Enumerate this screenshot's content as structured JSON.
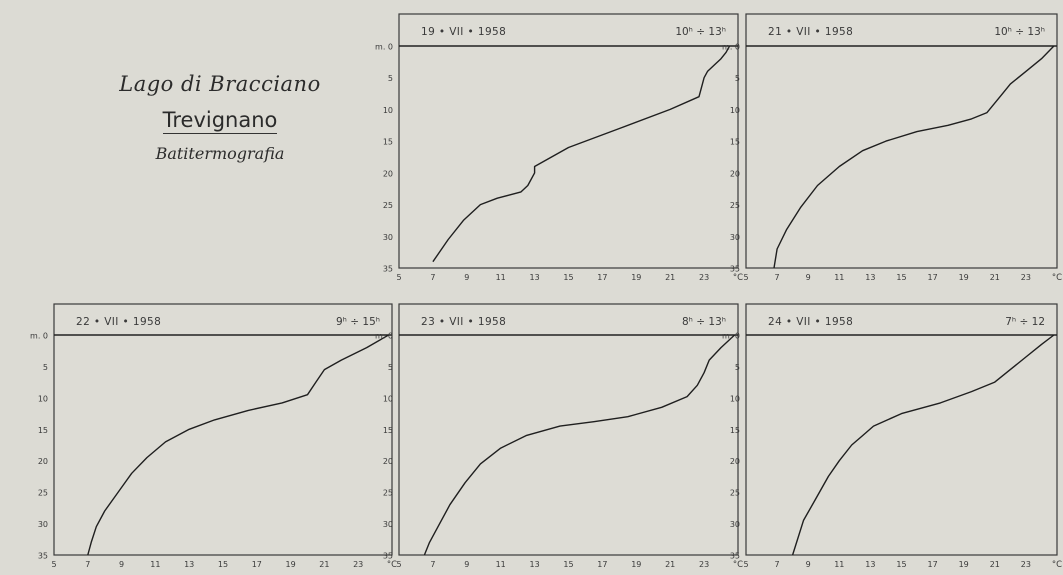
{
  "header": {
    "lake": "Lago di Bracciano",
    "place": "Trevignano",
    "subtitle": "Batitermografia"
  },
  "axes": {
    "depth_prefix": "m.",
    "depth_ticks": [
      0,
      5,
      10,
      15,
      20,
      25,
      30,
      35
    ],
    "temp_ticks": [
      5,
      7,
      9,
      11,
      13,
      15,
      17,
      19,
      21,
      23
    ],
    "temp_unit": "°C",
    "xlim": [
      5,
      25
    ],
    "ylim": [
      0,
      35
    ]
  },
  "chart_data": [
    {
      "type": "line",
      "date": "19 • VII • 1958",
      "time": "10ʰ ÷ 13ʰ",
      "xlabel": "°C",
      "ylabel": "m.",
      "x": [
        24.5,
        24.3,
        24.0,
        23.6,
        23.2,
        23.0,
        22.9,
        22.7,
        21.0,
        18.0,
        15.0,
        13.0,
        13.0,
        12.6,
        12.2,
        11.5,
        10.8,
        9.8,
        8.8,
        7.9,
        7.0
      ],
      "y": [
        0,
        1,
        2,
        3,
        4,
        5,
        6,
        8,
        10,
        13,
        16,
        19,
        20,
        22,
        23,
        23.5,
        24,
        25,
        27.5,
        30.5,
        34
      ]
    },
    {
      "type": "line",
      "date": "21 • VII • 1958",
      "time": "10ʰ ÷ 13ʰ",
      "xlabel": "°C",
      "ylabel": "m.",
      "x": [
        24.8,
        24.0,
        23.0,
        22.0,
        21.5,
        21.0,
        20.5,
        19.5,
        18.0,
        16.0,
        14.0,
        12.5,
        11.0,
        9.6,
        8.5,
        7.6,
        7.0,
        6.8
      ],
      "y": [
        0,
        2,
        4,
        6,
        7.5,
        9,
        10.5,
        11.5,
        12.5,
        13.5,
        15,
        16.5,
        19,
        22,
        25.5,
        29,
        32,
        35
      ]
    },
    {
      "type": "line",
      "date": "22 • VII • 1958",
      "time": "9ʰ ÷ 15ʰ",
      "xlabel": "°C",
      "ylabel": "m.",
      "x": [
        24.8,
        23.5,
        22.0,
        21.0,
        20.5,
        20.0,
        18.5,
        16.5,
        14.5,
        13.0,
        11.6,
        10.5,
        9.6,
        8.8,
        8.0,
        7.5,
        7.2,
        7.0
      ],
      "y": [
        0,
        2,
        4,
        5.5,
        7.5,
        9.5,
        10.8,
        12,
        13.5,
        15,
        17,
        19.5,
        22,
        25,
        28,
        30.5,
        33,
        35
      ]
    },
    {
      "type": "line",
      "date": "23 • VII • 1958",
      "time": "8ʰ ÷ 13ʰ",
      "xlabel": "°C",
      "ylabel": "m.",
      "x": [
        24.8,
        24.0,
        23.3,
        23.0,
        22.6,
        22.0,
        20.5,
        18.5,
        16.5,
        14.5,
        12.5,
        11.0,
        9.8,
        8.9,
        8.0,
        7.3,
        6.8,
        6.5
      ],
      "y": [
        0,
        2,
        4,
        6,
        8,
        9.8,
        11.5,
        13,
        13.8,
        14.5,
        16,
        18,
        20.5,
        23.5,
        27,
        30.5,
        33,
        35
      ]
    },
    {
      "type": "line",
      "date": "24 • VII • 1958",
      "time": "7ʰ ÷ 12",
      "xlabel": "°C",
      "ylabel": "m.",
      "x": [
        24.8,
        24.0,
        23.0,
        22.0,
        21.0,
        19.5,
        17.5,
        15.0,
        13.2,
        12.5,
        11.8,
        11.0,
        10.3,
        9.5,
        8.7,
        8.0
      ],
      "y": [
        0,
        1.5,
        3.5,
        5.5,
        7.5,
        9,
        10.8,
        12.5,
        14.5,
        16,
        17.5,
        20,
        22.5,
        26,
        29.5,
        35
      ]
    }
  ]
}
